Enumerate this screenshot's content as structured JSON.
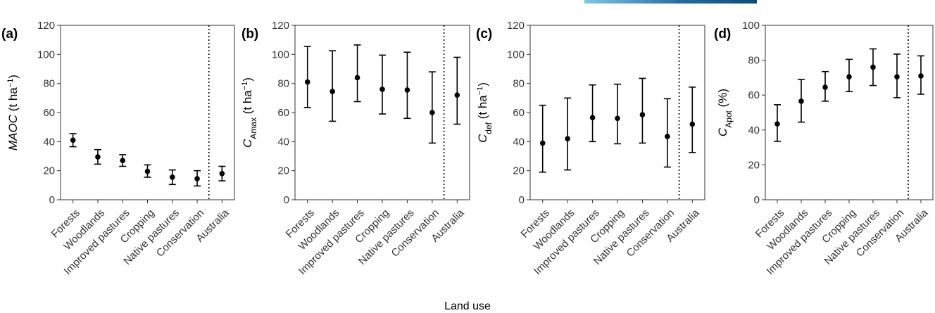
{
  "header_bar": {
    "colors": [
      "#7ec8ea",
      "#0b4c7c"
    ]
  },
  "figure": {
    "x_axis_label": "Land use"
  },
  "chart_data": [
    {
      "type": "scatter",
      "panel": "(a)",
      "ylabel": {
        "main": "MAOC",
        "sub": "",
        "unit_prefix": " (t ha",
        "unit_sup": "−1",
        "unit_suffix": ")"
      },
      "categories": [
        "Forests",
        "Woodlands",
        "Improved pastures",
        "Cropping",
        "Native pastures",
        "Conservation",
        "Australia"
      ],
      "values": [
        41,
        29.5,
        27,
        19.5,
        15.5,
        14.5,
        18
      ],
      "lower": [
        36.5,
        24.5,
        23,
        15.5,
        10.5,
        9.5,
        13
      ],
      "upper": [
        45.5,
        34.5,
        31,
        24,
        20.5,
        20,
        23
      ],
      "ylim": [
        0,
        120
      ],
      "yticks": [
        "0",
        "20",
        "40",
        "60",
        "80",
        "100",
        "120"
      ],
      "separator_after_index": 5,
      "grid": false
    },
    {
      "type": "scatter",
      "panel": "(b)",
      "ylabel": {
        "main": "C",
        "sub": "Amax",
        "unit_prefix": " (t ha",
        "unit_sup": "−1",
        "unit_suffix": ")"
      },
      "categories": [
        "Forests",
        "Woodlands",
        "Improved pastures",
        "Cropping",
        "Native pastures",
        "Conservation",
        "Australia"
      ],
      "values": [
        81,
        74.5,
        84,
        76,
        75.5,
        60,
        72
      ],
      "lower": [
        63.5,
        54,
        67.5,
        59,
        56,
        39,
        52
      ],
      "upper": [
        105.5,
        102.5,
        106.5,
        99.5,
        101.5,
        88,
        98
      ],
      "ylim": [
        0,
        120
      ],
      "yticks": [
        "0",
        "20",
        "40",
        "60",
        "80",
        "100",
        "120"
      ],
      "separator_after_index": 5,
      "grid": false
    },
    {
      "type": "scatter",
      "panel": "(c)",
      "ylabel": {
        "main": "C",
        "sub": "def",
        "unit_prefix": " (t ha",
        "unit_sup": "−1",
        "unit_suffix": ")"
      },
      "categories": [
        "Forests",
        "Woodlands",
        "Improved pastures",
        "Cropping",
        "Native pastures",
        "Conservation",
        "Australia"
      ],
      "values": [
        39,
        42,
        56.5,
        56,
        58.5,
        43.5,
        52
      ],
      "lower": [
        19,
        20.5,
        40,
        38.5,
        39,
        22.5,
        32.5
      ],
      "upper": [
        65,
        70,
        79,
        79.5,
        83.5,
        69.5,
        77.5
      ],
      "ylim": [
        0,
        120
      ],
      "yticks": [
        "0",
        "20",
        "40",
        "60",
        "80",
        "100",
        "120"
      ],
      "separator_after_index": 5,
      "grid": false
    },
    {
      "type": "scatter",
      "panel": "(d)",
      "ylabel": {
        "main": "C",
        "sub": "Apot",
        "unit_prefix": " (%)",
        "unit_sup": "",
        "unit_suffix": ""
      },
      "categories": [
        "Forests",
        "Woodlands",
        "Improved pastures",
        "Cropping",
        "Native pastures",
        "Conservation",
        "Australia"
      ],
      "values": [
        43.5,
        56.5,
        64.5,
        70.5,
        76,
        70.5,
        71
      ],
      "lower": [
        33.5,
        44.5,
        56.5,
        62,
        65.5,
        58.5,
        60.5
      ],
      "upper": [
        54.5,
        69,
        73.5,
        80.5,
        86.5,
        83.5,
        82.5
      ],
      "ylim": [
        0,
        100
      ],
      "yticks": [
        "0",
        "20",
        "40",
        "60",
        "80",
        "100"
      ],
      "separator_after_index": 5,
      "grid": false
    }
  ]
}
